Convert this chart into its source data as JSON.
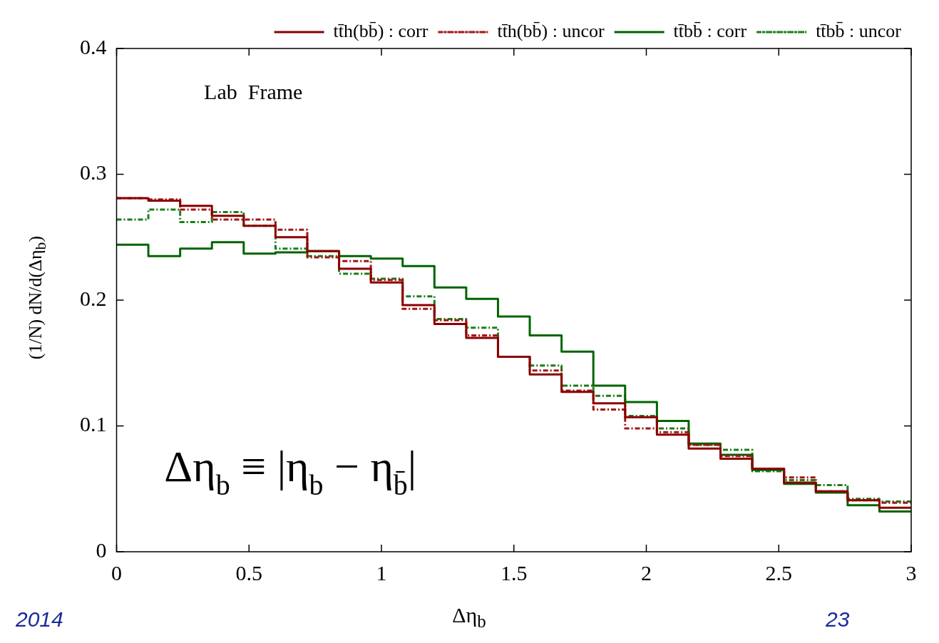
{
  "chart_data": {
    "type": "histogram",
    "xlabel": "Δη$_{b}$",
    "ylabel": "(1/N) dN/d(Δη$_{b}$)",
    "annotations": [
      "Lab  Frame",
      "Δη$_{b}$ ≡ |η$_{b}$ − η$_{b̄}$|",
      "2014",
      "23"
    ],
    "bins": [
      0,
      0.12,
      0.24,
      0.36,
      0.48,
      0.6,
      0.72,
      0.84,
      0.96,
      1.08,
      1.2,
      1.32,
      1.44,
      1.56,
      1.68,
      1.8,
      1.92,
      2.04,
      2.16,
      2.28,
      2.4,
      2.52,
      2.64,
      2.76,
      2.88,
      3
    ],
    "series": [
      {
        "name": "tt̄h(bb̄) : corr",
        "color": "#8b0000",
        "line_style": "solid",
        "values": [
          0.281,
          0.279,
          0.275,
          0.267,
          0.259,
          0.25,
          0.239,
          0.225,
          0.214,
          0.196,
          0.181,
          0.17,
          0.155,
          0.141,
          0.127,
          0.118,
          0.107,
          0.093,
          0.082,
          0.074,
          0.066,
          0.055,
          0.048,
          0.041,
          0.035
        ]
      },
      {
        "name": "tt̄h(bb̄) : uncor",
        "color": "#a31515",
        "line_style": "dashed",
        "values": [
          0.281,
          0.28,
          0.272,
          0.264,
          0.264,
          0.256,
          0.234,
          0.231,
          0.216,
          0.193,
          0.184,
          0.172,
          0.155,
          0.144,
          0.128,
          0.113,
          0.098,
          0.095,
          0.085,
          0.076,
          0.066,
          0.059,
          0.048,
          0.041,
          0.039
        ]
      },
      {
        "name": "tt̄bb̄ : corr",
        "color": "#006400",
        "line_style": "solid",
        "values": [
          0.244,
          0.235,
          0.241,
          0.246,
          0.237,
          0.238,
          0.239,
          0.235,
          0.233,
          0.227,
          0.21,
          0.201,
          0.187,
          0.172,
          0.159,
          0.132,
          0.119,
          0.104,
          0.086,
          0.077,
          0.065,
          0.054,
          0.047,
          0.037,
          0.032
        ]
      },
      {
        "name": "tt̄bb̄ : uncor",
        "color": "#1b7d1b",
        "line_style": "dashed",
        "values": [
          0.264,
          0.272,
          0.262,
          0.27,
          0.259,
          0.241,
          0.235,
          0.221,
          0.217,
          0.203,
          0.185,
          0.178,
          0.155,
          0.148,
          0.132,
          0.124,
          0.108,
          0.098,
          0.085,
          0.081,
          0.064,
          0.057,
          0.053,
          0.042,
          0.04
        ]
      }
    ],
    "xlim": [
      0,
      3
    ],
    "xticks": [
      0,
      0.5,
      1,
      1.5,
      2,
      2.5,
      3
    ],
    "ylim": [
      0,
      0.4
    ],
    "yticks": [
      0,
      0.1,
      0.2,
      0.3,
      0.4
    ],
    "grid": false,
    "legend": "top right"
  }
}
